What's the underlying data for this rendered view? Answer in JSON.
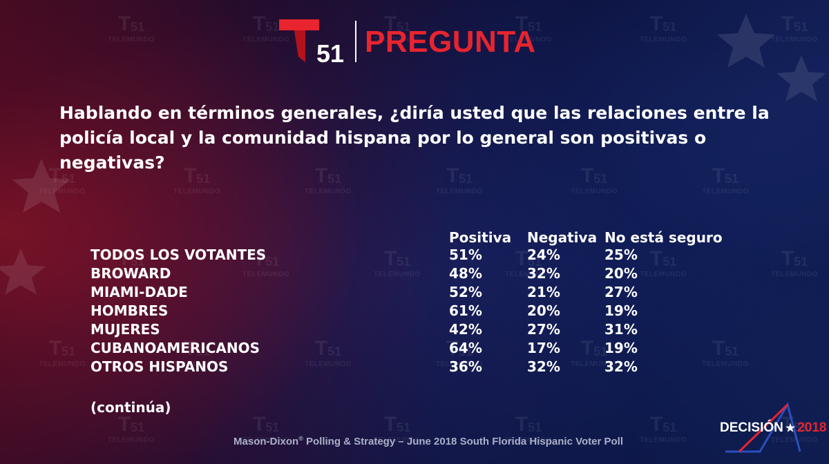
{
  "header": {
    "logo_number": "51",
    "title": "PREGUNTA"
  },
  "watermark": {
    "number": "51",
    "brand": "TELEMUNDO"
  },
  "question": "Hablando en términos generales, ¿diría usted que las relaciones entre la policía local y la comunidad hispana por lo general son positivas o negativas?",
  "chart_data": {
    "type": "table",
    "columns": [
      "Positiva",
      "Negativa",
      "No está seguro"
    ],
    "rows": [
      {
        "label": "TODOS LOS VOTANTES",
        "values": [
          "51%",
          "24%",
          "25%"
        ]
      },
      {
        "label": "BROWARD",
        "values": [
          "48%",
          "32%",
          "20%"
        ]
      },
      {
        "label": "MIAMI-DADE",
        "values": [
          "52%",
          "21%",
          "27%"
        ]
      },
      {
        "label": "HOMBRES",
        "values": [
          "61%",
          "20%",
          "19%"
        ]
      },
      {
        "label": "MUJERES",
        "values": [
          "42%",
          "27%",
          "31%"
        ]
      },
      {
        "label": "CUBANOAMERICANOS",
        "values": [
          "64%",
          "17%",
          "19%"
        ]
      },
      {
        "label": "OTROS HISPANOS",
        "values": [
          "36%",
          "32%",
          "32%"
        ]
      }
    ]
  },
  "continua": "(continúa)",
  "footer": {
    "source_prefix": "Mason-Dixon",
    "source_mark": "®",
    "source_rest": " Polling & Strategy – June 2018 South Florida Hispanic Voter Poll"
  },
  "decision_logo": {
    "word": "DECISIÓN",
    "star": "★",
    "year": "2018"
  },
  "colors": {
    "accent_red": "#e8242f",
    "text_white": "#ffffff",
    "footer_gray": "#aab0c8"
  }
}
